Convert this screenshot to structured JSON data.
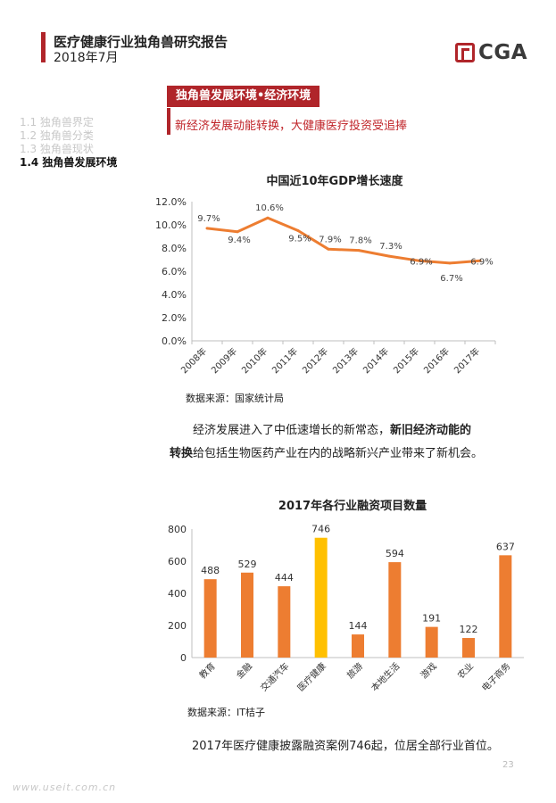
{
  "header": {
    "title": "医疗健康行业独角兽研究报告",
    "date": "2018年7月",
    "logo_text": "CGA"
  },
  "toc": {
    "items": [
      {
        "label": "1.1 独角兽界定",
        "active": false
      },
      {
        "label": "1.2 独角兽分类",
        "active": false
      },
      {
        "label": "1.3 独角兽现状",
        "active": false
      },
      {
        "label": "1.4 独角兽发展环境",
        "active": true
      }
    ]
  },
  "section": {
    "tag": "独角兽发展环境•经济环境",
    "subtitle": "新经济发展动能转换，大健康医疗投资受追捧"
  },
  "gdp_chart": {
    "title": "中国近10年GDP增长速度",
    "source": "数据来源：国家统计局"
  },
  "para1": {
    "part1": "经济发展进入了中低速增长的新常态，",
    "bold1": "新旧经济动能的",
    "bold2": "转换",
    "part2": "给包括生物医药产业在内的战略新兴产业带来了新机会。"
  },
  "invest_chart": {
    "title": "2017年各行业融资项目数量",
    "source": "数据来源：IT桔子"
  },
  "para2": "2017年医疗健康披露融资案例746起，位居全部行业首位。",
  "footer": {
    "url": "www.useit.com.cn",
    "page": "23"
  },
  "colors": {
    "accent_red": "#b0252a",
    "line_orange": "#ed7d31",
    "bar_orange": "#ed7d31",
    "bar_highlight": "#ffc000"
  },
  "chart_data": [
    {
      "type": "line",
      "title": "中国近10年GDP增长速度",
      "x": [
        "2008年",
        "2009年",
        "2010年",
        "2011年",
        "2012年",
        "2013年",
        "2014年",
        "2015年",
        "2016年",
        "2017年"
      ],
      "values": [
        9.7,
        9.4,
        10.6,
        9.5,
        7.9,
        7.8,
        7.3,
        6.9,
        6.7,
        6.9
      ],
      "labels": [
        "9.7%",
        "9.4%",
        "10.6%",
        "9.5%",
        "7.9%",
        "7.8%",
        "7.3%",
        "6.9%",
        "6.7%",
        "6.9%"
      ],
      "ylim": [
        0,
        12
      ],
      "yticks": [
        "0.0%",
        "2.0%",
        "4.0%",
        "6.0%",
        "8.0%",
        "10.0%",
        "12.0%"
      ],
      "grid": false
    },
    {
      "type": "bar",
      "title": "2017年各行业融资项目数量",
      "categories": [
        "教育",
        "金融",
        "交通汽车",
        "医疗健康",
        "旅游",
        "本地生活",
        "游戏",
        "农业",
        "电子商务"
      ],
      "values": [
        488,
        529,
        444,
        746,
        144,
        594,
        191,
        122,
        637
      ],
      "highlight": "医疗健康",
      "ylim": [
        0,
        800
      ],
      "yticks": [
        "0",
        "200",
        "400",
        "600",
        "800"
      ],
      "grid": false
    }
  ]
}
